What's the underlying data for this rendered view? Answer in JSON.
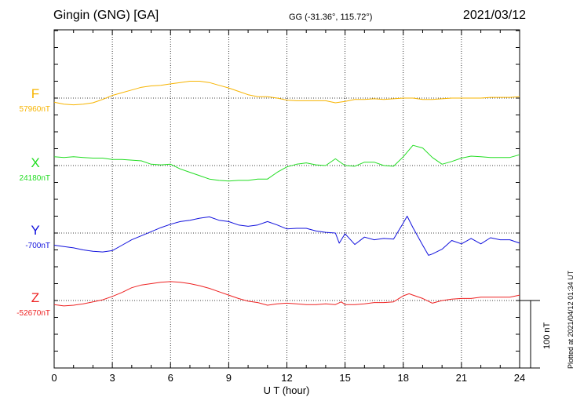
{
  "header": {
    "station": "Gingin (GNG)  [GA]",
    "coords": "GG (-31.36°, 115.72°)",
    "date": "2021/03/12"
  },
  "plotted_note": "Plotted at 2021/04/12 01:34  UT",
  "scale_bar_label": "100 nT",
  "chart_data": {
    "type": "line",
    "title": "Gingin (GNG)  [GA]",
    "xlabel": "U T (hour)",
    "xlim": [
      0,
      24
    ],
    "xticks": [
      "0",
      "3",
      "6",
      "9",
      "12",
      "15",
      "18",
      "21",
      "24"
    ],
    "scale_nT": 100,
    "series": [
      {
        "name": "F",
        "baseline_label": "57960nT",
        "baseline": 57960,
        "color": "#f7b400",
        "points": [
          [
            0,
            57954
          ],
          [
            0.5,
            57951
          ],
          [
            1,
            57950
          ],
          [
            1.5,
            57951
          ],
          [
            2,
            57953
          ],
          [
            2.5,
            57958
          ],
          [
            3,
            57964
          ],
          [
            3.5,
            57968
          ],
          [
            4,
            57972
          ],
          [
            4.5,
            57976
          ],
          [
            5,
            57978
          ],
          [
            5.5,
            57979
          ],
          [
            6,
            57981
          ],
          [
            6.5,
            57983
          ],
          [
            7,
            57985
          ],
          [
            7.5,
            57985
          ],
          [
            8,
            57983
          ],
          [
            8.5,
            57979
          ],
          [
            9,
            57975
          ],
          [
            9.5,
            57970
          ],
          [
            10,
            57965
          ],
          [
            10.5,
            57962
          ],
          [
            11,
            57962
          ],
          [
            11.5,
            57960
          ],
          [
            12,
            57957
          ],
          [
            12.5,
            57956
          ],
          [
            13,
            57956
          ],
          [
            13.5,
            57956
          ],
          [
            14,
            57956
          ],
          [
            14.5,
            57953
          ],
          [
            15,
            57955
          ],
          [
            15.5,
            57958
          ],
          [
            16,
            57958
          ],
          [
            16.5,
            57959
          ],
          [
            17,
            57958
          ],
          [
            17.5,
            57959
          ],
          [
            18,
            57960
          ],
          [
            18.5,
            57960
          ],
          [
            19,
            57958
          ],
          [
            19.5,
            57958
          ],
          [
            20,
            57959
          ],
          [
            20.5,
            57960
          ],
          [
            21,
            57960
          ],
          [
            21.5,
            57960
          ],
          [
            22,
            57960
          ],
          [
            22.5,
            57961
          ],
          [
            23,
            57961
          ],
          [
            23.5,
            57961
          ],
          [
            24,
            57962
          ]
        ]
      },
      {
        "name": "X",
        "baseline_label": "24180nT",
        "baseline": 24180,
        "color": "#22dd22",
        "points": [
          [
            0,
            24193
          ],
          [
            0.5,
            24192
          ],
          [
            1,
            24193
          ],
          [
            1.5,
            24192
          ],
          [
            2,
            24191
          ],
          [
            2.5,
            24191
          ],
          [
            3,
            24189
          ],
          [
            3.5,
            24189
          ],
          [
            4,
            24188
          ],
          [
            4.5,
            24187
          ],
          [
            5,
            24182
          ],
          [
            5.5,
            24181
          ],
          [
            6,
            24182
          ],
          [
            6.5,
            24175
          ],
          [
            7,
            24170
          ],
          [
            7.5,
            24165
          ],
          [
            8,
            24160
          ],
          [
            8.5,
            24158
          ],
          [
            9,
            24157
          ],
          [
            9.5,
            24158
          ],
          [
            10,
            24158
          ],
          [
            10.5,
            24160
          ],
          [
            11,
            24160
          ],
          [
            11.5,
            24170
          ],
          [
            12,
            24178
          ],
          [
            12.5,
            24182
          ],
          [
            13,
            24184
          ],
          [
            13.5,
            24181
          ],
          [
            14,
            24180
          ],
          [
            14.5,
            24190
          ],
          [
            15,
            24180
          ],
          [
            15.5,
            24179
          ],
          [
            16,
            24185
          ],
          [
            16.5,
            24185
          ],
          [
            17,
            24180
          ],
          [
            17.5,
            24179
          ],
          [
            18,
            24193
          ],
          [
            18.5,
            24210
          ],
          [
            19,
            24206
          ],
          [
            19.5,
            24192
          ],
          [
            20,
            24182
          ],
          [
            20.5,
            24186
          ],
          [
            21,
            24191
          ],
          [
            21.5,
            24194
          ],
          [
            22,
            24193
          ],
          [
            22.5,
            24192
          ],
          [
            23,
            24192
          ],
          [
            23.5,
            24192
          ],
          [
            24,
            24196
          ]
        ]
      },
      {
        "name": "Y",
        "baseline_label": "-700nT",
        "baseline": -700,
        "color": "#1111dd",
        "points": [
          [
            0,
            -718
          ],
          [
            0.5,
            -720
          ],
          [
            1,
            -722
          ],
          [
            1.5,
            -725
          ],
          [
            2,
            -727
          ],
          [
            2.5,
            -728
          ],
          [
            3,
            -726
          ],
          [
            3.5,
            -718
          ],
          [
            4,
            -710
          ],
          [
            4.5,
            -704
          ],
          [
            5,
            -698
          ],
          [
            5.5,
            -692
          ],
          [
            6,
            -687
          ],
          [
            6.5,
            -683
          ],
          [
            7,
            -681
          ],
          [
            7.5,
            -678
          ],
          [
            8,
            -676
          ],
          [
            8.5,
            -681
          ],
          [
            9,
            -683
          ],
          [
            9.5,
            -688
          ],
          [
            10,
            -690
          ],
          [
            10.5,
            -688
          ],
          [
            11,
            -683
          ],
          [
            11.5,
            -688
          ],
          [
            12,
            -694
          ],
          [
            12.5,
            -693
          ],
          [
            13,
            -693
          ],
          [
            13.5,
            -697
          ],
          [
            14,
            -699
          ],
          [
            14.5,
            -700
          ],
          [
            14.7,
            -715
          ],
          [
            15,
            -701
          ],
          [
            15.5,
            -717
          ],
          [
            16,
            -706
          ],
          [
            16.5,
            -710
          ],
          [
            17,
            -708
          ],
          [
            17.5,
            -709
          ],
          [
            18,
            -685
          ],
          [
            18.2,
            -675
          ],
          [
            18.5,
            -692
          ],
          [
            19,
            -718
          ],
          [
            19.3,
            -733
          ],
          [
            19.5,
            -731
          ],
          [
            20,
            -724
          ],
          [
            20.5,
            -711
          ],
          [
            21,
            -716
          ],
          [
            21.5,
            -708
          ],
          [
            22,
            -716
          ],
          [
            22.5,
            -707
          ],
          [
            23,
            -710
          ],
          [
            23.5,
            -710
          ],
          [
            24,
            -715
          ]
        ]
      },
      {
        "name": "Z",
        "baseline_label": "-52670nT",
        "baseline": -52670,
        "color": "#ee2222",
        "points": [
          [
            0,
            -52676
          ],
          [
            0.5,
            -52678
          ],
          [
            1,
            -52677
          ],
          [
            1.5,
            -52675
          ],
          [
            2,
            -52672
          ],
          [
            2.5,
            -52669
          ],
          [
            3,
            -52664
          ],
          [
            3.5,
            -52658
          ],
          [
            4,
            -52651
          ],
          [
            4.5,
            -52647
          ],
          [
            5,
            -52645
          ],
          [
            5.5,
            -52643
          ],
          [
            6,
            -52642
          ],
          [
            6.5,
            -52643
          ],
          [
            7,
            -52645
          ],
          [
            7.5,
            -52648
          ],
          [
            8,
            -52652
          ],
          [
            8.5,
            -52657
          ],
          [
            9,
            -52662
          ],
          [
            9.5,
            -52667
          ],
          [
            10,
            -52671
          ],
          [
            10.5,
            -52673
          ],
          [
            11,
            -52677
          ],
          [
            11.5,
            -52675
          ],
          [
            12,
            -52674
          ],
          [
            12.5,
            -52675
          ],
          [
            13,
            -52676
          ],
          [
            13.5,
            -52676
          ],
          [
            14,
            -52675
          ],
          [
            14.5,
            -52676
          ],
          [
            14.8,
            -52672
          ],
          [
            15,
            -52676
          ],
          [
            15.5,
            -52676
          ],
          [
            16,
            -52675
          ],
          [
            16.5,
            -52673
          ],
          [
            17,
            -52673
          ],
          [
            17.5,
            -52672
          ],
          [
            18,
            -52663
          ],
          [
            18.3,
            -52660
          ],
          [
            18.5,
            -52662
          ],
          [
            19,
            -52667
          ],
          [
            19.5,
            -52674
          ],
          [
            20,
            -52670
          ],
          [
            20.5,
            -52668
          ],
          [
            21,
            -52667
          ],
          [
            21.5,
            -52667
          ],
          [
            22,
            -52665
          ],
          [
            22.5,
            -52665
          ],
          [
            23,
            -52665
          ],
          [
            23.5,
            -52665
          ],
          [
            24,
            -52662
          ]
        ]
      }
    ]
  }
}
